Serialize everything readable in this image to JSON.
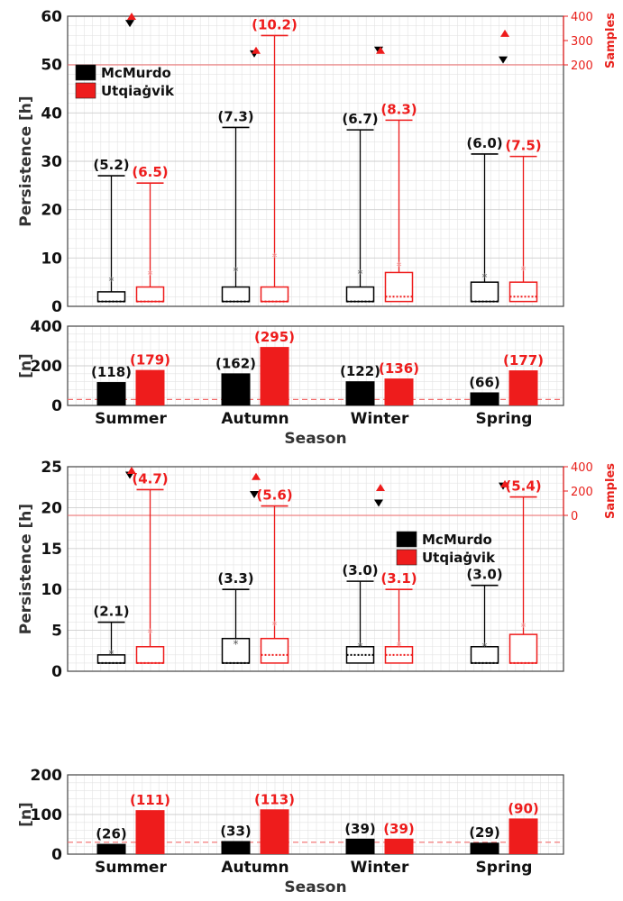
{
  "colors": {
    "mcmurdo": "#000000",
    "utqiagvik": "#ee1c1c",
    "grid": "#e3e3e3",
    "axis": "#444444",
    "threshold": "#f26b6b"
  },
  "legend": {
    "series": [
      "McMurdo",
      "Utqiaġvik"
    ]
  },
  "chart_data": [
    {
      "type": "box",
      "ylabel": "Persistence [h]",
      "y2label": "Samples",
      "ylim": [
        0,
        60
      ],
      "yticks": [
        "0",
        "10",
        "20",
        "30",
        "40",
        "50",
        "60"
      ],
      "y2lim": [
        0,
        400
      ],
      "y2ticks": [
        "200",
        "300",
        "400"
      ],
      "categories": [
        "Summer",
        "Autumn",
        "Winter",
        "Spring"
      ],
      "legend_position": "upper-left",
      "series": [
        {
          "name": "McMurdo",
          "boxes": [
            {
              "min": 1,
              "q1": 1,
              "median": 1,
              "q3": 3,
              "max": 27,
              "mean": 5.2,
              "label": "(5.2)"
            },
            {
              "min": 1,
              "q1": 1,
              "median": 1,
              "q3": 4,
              "max": 37,
              "mean": 7.3,
              "label": "(7.3)"
            },
            {
              "min": 1,
              "q1": 1,
              "median": 1,
              "q3": 4,
              "max": 36.5,
              "mean": 6.7,
              "label": "(6.7)"
            },
            {
              "min": 1,
              "q1": 1,
              "median": 1,
              "q3": 5,
              "max": 31.5,
              "mean": 6.0,
              "label": "(6.0)"
            }
          ],
          "sample_markers": [
            370,
            245,
            260,
            220
          ]
        },
        {
          "name": "Utqiaġvik",
          "boxes": [
            {
              "min": 1,
              "q1": 1,
              "median": 1,
              "q3": 4,
              "max": 25.5,
              "mean": 6.5,
              "label": "(6.5)"
            },
            {
              "min": 1,
              "q1": 1,
              "median": 1,
              "q3": 4,
              "max": 56,
              "mean": 10.2,
              "label": "(10.2)"
            },
            {
              "min": 1,
              "q1": 1.2,
              "median": 2,
              "q3": 7,
              "max": 38.5,
              "mean": 8.3,
              "label": "(8.3)"
            },
            {
              "min": 1,
              "q1": 1,
              "median": 2,
              "q3": 5,
              "max": 31,
              "mean": 7.5,
              "label": "(7.5)"
            }
          ],
          "sample_markers": [
            400,
            260,
            260,
            330
          ]
        }
      ]
    },
    {
      "type": "bar",
      "ylabel": "[n]",
      "xlabel": "Season",
      "ylim": [
        0,
        400
      ],
      "yticks": [
        "0",
        "200",
        "400"
      ],
      "threshold": 30,
      "categories": [
        "Summer",
        "Autumn",
        "Winter",
        "Spring"
      ],
      "series": [
        {
          "name": "McMurdo",
          "values": [
            118,
            162,
            122,
            66
          ],
          "labels": [
            "(118)",
            "(162)",
            "(122)",
            "(66)"
          ]
        },
        {
          "name": "Utqiaġvik",
          "values": [
            179,
            295,
            136,
            177
          ],
          "labels": [
            "(179)",
            "(295)",
            "(136)",
            "(177)"
          ]
        }
      ]
    },
    {
      "type": "box",
      "ylabel": "Persistence [h]",
      "y2label": "Samples",
      "ylim": [
        0,
        25
      ],
      "yticks": [
        "0",
        "5",
        "10",
        "15",
        "20",
        "25"
      ],
      "y2lim": [
        0,
        400
      ],
      "y2ticks": [
        "0",
        "200",
        "400"
      ],
      "categories": [
        "Summer",
        "Autumn",
        "Winter",
        "Spring"
      ],
      "legend_position": "upper-right",
      "series": [
        {
          "name": "McMurdo",
          "boxes": [
            {
              "min": 1,
              "q1": 1,
              "median": 1,
              "q3": 2,
              "max": 6,
              "mean": 2.1,
              "label": "(2.1)"
            },
            {
              "min": 1,
              "q1": 1,
              "median": 1,
              "q3": 4,
              "max": 10,
              "mean": 3.3,
              "label": "(3.3)"
            },
            {
              "min": 1,
              "q1": 1,
              "median": 2,
              "q3": 3,
              "max": 11,
              "mean": 3.0,
              "label": "(3.0)"
            },
            {
              "min": 1,
              "q1": 1,
              "median": 1,
              "q3": 3,
              "max": 10.5,
              "mean": 3.0,
              "label": "(3.0)"
            }
          ],
          "sample_markers": [
            330,
            170,
            100,
            240
          ]
        },
        {
          "name": "Utqiaġvik",
          "boxes": [
            {
              "min": 1,
              "q1": 1,
              "median": 1,
              "q3": 3,
              "max": 22.2,
              "mean": 4.7,
              "label": "(4.7)"
            },
            {
              "min": 1,
              "q1": 1,
              "median": 2,
              "q3": 4,
              "max": 20.2,
              "mean": 5.6,
              "label": "(5.6)"
            },
            {
              "min": 1,
              "q1": 1,
              "median": 2,
              "q3": 3,
              "max": 10,
              "mean": 3.1,
              "label": "(3.1)"
            },
            {
              "min": 1,
              "q1": 1,
              "median": 1,
              "q3": 4.5,
              "max": 21.3,
              "mean": 5.4,
              "label": "(5.4)"
            }
          ],
          "sample_markers": [
            370,
            320,
            230,
            260
          ]
        }
      ]
    },
    {
      "type": "bar",
      "ylabel": "[n]",
      "xlabel": "Season",
      "ylim": [
        0,
        200
      ],
      "yticks": [
        "0",
        "100",
        "200"
      ],
      "threshold": 30,
      "categories": [
        "Summer",
        "Autumn",
        "Winter",
        "Spring"
      ],
      "series": [
        {
          "name": "McMurdo",
          "values": [
            26,
            33,
            39,
            29
          ],
          "labels": [
            "(26)",
            "(33)",
            "(39)",
            "(29)"
          ]
        },
        {
          "name": "Utqiaġvik",
          "values": [
            111,
            113,
            39,
            90
          ],
          "labels": [
            "(111)",
            "(113)",
            "(39)",
            "(90)"
          ]
        }
      ]
    }
  ]
}
